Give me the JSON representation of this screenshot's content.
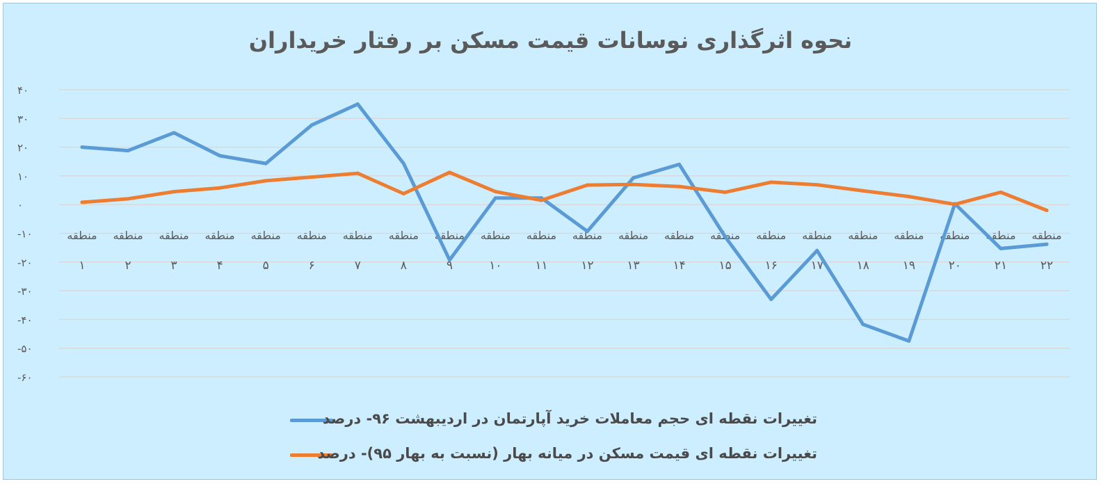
{
  "chart_data": {
    "type": "line",
    "title": "نحوه اثرگذاری نوسانات قیمت مسکن بر رفتار خریداران",
    "categories": [
      {
        "word": "منطقه",
        "num": "۱"
      },
      {
        "word": "منطقه",
        "num": "۲"
      },
      {
        "word": "منطقه",
        "num": "۳"
      },
      {
        "word": "منطقه",
        "num": "۴"
      },
      {
        "word": "منطقه",
        "num": "۵"
      },
      {
        "word": "منطقه",
        "num": "۶"
      },
      {
        "word": "منطقه",
        "num": "۷"
      },
      {
        "word": "منطقه",
        "num": "۸"
      },
      {
        "word": "منطقه",
        "num": "۹"
      },
      {
        "word": "منطقه",
        "num": "۱۰"
      },
      {
        "word": "منطقه",
        "num": "۱۱"
      },
      {
        "word": "منطقه",
        "num": "۱۲"
      },
      {
        "word": "منطقه",
        "num": "۱۳"
      },
      {
        "word": "منطقه",
        "num": "۱۴"
      },
      {
        "word": "منطقه",
        "num": "۱۵"
      },
      {
        "word": "منطقه",
        "num": "۱۶"
      },
      {
        "word": "منطقه",
        "num": "۱۷"
      },
      {
        "word": "منطقه",
        "num": "۱۸"
      },
      {
        "word": "منطقه",
        "num": "۱۹"
      },
      {
        "word": "منطقه",
        "num": "۲۰"
      },
      {
        "word": "منطقه",
        "num": "۲۱"
      },
      {
        "word": "منطقه",
        "num": "۲۲"
      }
    ],
    "series": [
      {
        "name": "تغییرات نقطه ای حجم معاملات خرید آپارتمان در اردیبهشت ۹۶- درصد",
        "color": "#5b9bd5",
        "values": [
          20,
          18.8,
          25,
          17,
          14.3,
          27.7,
          35,
          14.3,
          -19.3,
          2.3,
          2.3,
          -9.3,
          9.3,
          14,
          -11.2,
          -33,
          -16,
          -41.7,
          -47.5,
          0.3,
          -15.3,
          -13.8
        ]
      },
      {
        "name": "تغییرات نقطه ای قیمت مسکن در میانه بهار (نسبت به بهار ۹۵)- درصد",
        "color": "#ed7d31",
        "values": [
          0.8,
          2,
          4.5,
          5.8,
          8.3,
          9.6,
          10.9,
          3.8,
          11.2,
          4.5,
          1.5,
          6.8,
          7,
          6.3,
          4.3,
          7.8,
          6.9,
          4.8,
          2.8,
          0.1,
          4.3,
          -2
        ]
      }
    ],
    "y_ticks": [
      "۴۰",
      "۳۰",
      "۲۰",
      "۱۰",
      "۰",
      "-۱۰",
      "-۲۰",
      "-۳۰",
      "-۴۰",
      "-۵۰",
      "-۶۰"
    ],
    "ylim": [
      -60,
      40
    ],
    "grid": true,
    "legend_position": "bottom"
  }
}
